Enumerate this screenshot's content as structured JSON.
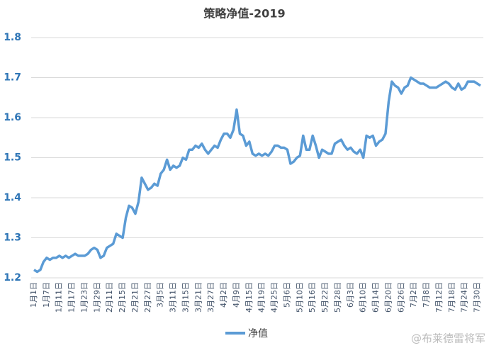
{
  "chart_data": {
    "type": "line",
    "title": "策略净值-2019",
    "watermark": "@布莱德雷将军",
    "categories": [
      "1月1日",
      null,
      null,
      null,
      "1月7日",
      null,
      null,
      null,
      "1月11日",
      null,
      null,
      null,
      "1月17日",
      null,
      null,
      null,
      "1月23日",
      null,
      null,
      null,
      "1月29日",
      null,
      null,
      null,
      "2月11日",
      null,
      null,
      null,
      "2月15日",
      null,
      null,
      null,
      "2月21日",
      null,
      null,
      null,
      "2月27日",
      null,
      null,
      null,
      "3月5日",
      null,
      null,
      null,
      "3月11日",
      null,
      null,
      null,
      "3月15日",
      null,
      null,
      null,
      "3月21日",
      null,
      null,
      null,
      "3月27日",
      null,
      null,
      null,
      "4月2日",
      null,
      null,
      null,
      "4月9日",
      null,
      null,
      null,
      "4月15日",
      null,
      null,
      null,
      "4月19日",
      null,
      null,
      null,
      "4月25日",
      null,
      null,
      null,
      "5月6日",
      null,
      null,
      null,
      "5月10日",
      null,
      null,
      null,
      "5月16日",
      null,
      null,
      null,
      "5月22日",
      null,
      null,
      null,
      "5月28日",
      null,
      null,
      null,
      "6月3日",
      null,
      null,
      null,
      "6月10日",
      null,
      null,
      null,
      "6月14日",
      null,
      null,
      null,
      "6月20日",
      null,
      null,
      null,
      "6月26日",
      null,
      null,
      null,
      "7月2日",
      null,
      null,
      null,
      "7月8日",
      null,
      null,
      null,
      "7月12日",
      null,
      null,
      null,
      "7月18日",
      null,
      null,
      null,
      "7月24日",
      null,
      null,
      null,
      "7月30日",
      null
    ],
    "series": [
      {
        "name": "净值",
        "color": "#5b9bd5",
        "values": [
          1.22,
          1.215,
          1.22,
          1.24,
          1.25,
          1.245,
          1.25,
          1.25,
          1.255,
          1.25,
          1.255,
          1.25,
          1.255,
          1.26,
          1.255,
          1.255,
          1.255,
          1.26,
          1.27,
          1.275,
          1.27,
          1.25,
          1.255,
          1.275,
          1.28,
          1.285,
          1.31,
          1.305,
          1.3,
          1.35,
          1.38,
          1.375,
          1.36,
          1.39,
          1.45,
          1.435,
          1.42,
          1.425,
          1.435,
          1.43,
          1.46,
          1.47,
          1.495,
          1.47,
          1.48,
          1.475,
          1.48,
          1.5,
          1.495,
          1.52,
          1.52,
          1.53,
          1.525,
          1.535,
          1.52,
          1.51,
          1.52,
          1.53,
          1.525,
          1.545,
          1.56,
          1.56,
          1.55,
          1.57,
          1.62,
          1.56,
          1.555,
          1.53,
          1.54,
          1.51,
          1.505,
          1.51,
          1.505,
          1.51,
          1.505,
          1.515,
          1.53,
          1.53,
          1.525,
          1.525,
          1.52,
          1.485,
          1.49,
          1.5,
          1.505,
          1.555,
          1.52,
          1.52,
          1.555,
          1.53,
          1.5,
          1.52,
          1.515,
          1.51,
          1.51,
          1.535,
          1.54,
          1.545,
          1.53,
          1.52,
          1.525,
          1.515,
          1.51,
          1.52,
          1.5,
          1.555,
          1.55,
          1.555,
          1.53,
          1.54,
          1.545,
          1.56,
          1.64,
          1.69,
          1.68,
          1.675,
          1.66,
          1.675,
          1.68,
          1.7,
          1.695,
          1.69,
          1.685,
          1.685,
          1.68,
          1.675,
          1.675,
          1.675,
          1.68,
          1.685,
          1.69,
          1.685,
          1.675,
          1.67,
          1.685,
          1.67,
          1.675,
          1.69,
          1.69,
          1.69,
          1.685,
          1.68
        ]
      }
    ],
    "ylim": [
      1.2,
      1.8
    ],
    "yticks": [
      1.2,
      1.3,
      1.4,
      1.5,
      1.6,
      1.7,
      1.8
    ],
    "grid": true
  }
}
